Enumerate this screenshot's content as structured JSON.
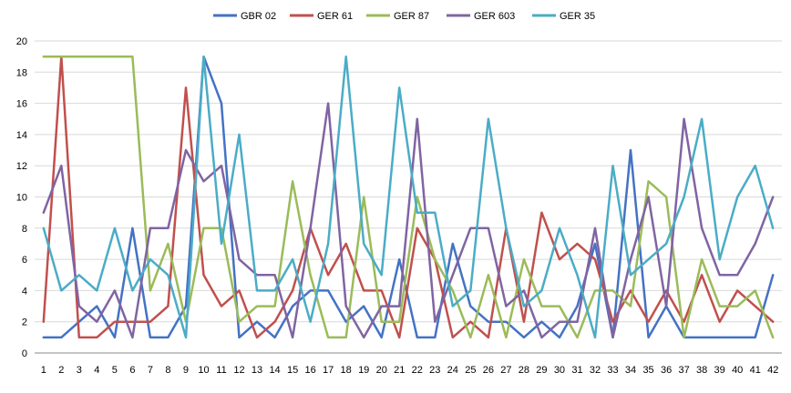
{
  "chart_data": {
    "type": "line",
    "title": "",
    "xlabel": "",
    "ylabel": "",
    "ylim": [
      0,
      20
    ],
    "y_ticks": [
      0,
      2,
      4,
      6,
      8,
      10,
      12,
      14,
      16,
      18,
      20
    ],
    "grid": "horizontal",
    "legend_position": "top",
    "x": [
      1,
      2,
      3,
      4,
      5,
      6,
      7,
      8,
      9,
      10,
      11,
      12,
      13,
      14,
      15,
      16,
      17,
      18,
      19,
      20,
      21,
      22,
      23,
      24,
      25,
      26,
      27,
      28,
      29,
      30,
      31,
      32,
      33,
      34,
      35,
      36,
      37,
      38,
      39,
      40,
      41,
      42
    ],
    "series": [
      {
        "name": "GBR 02",
        "color": "#4472C4",
        "values": [
          1,
          1,
          2,
          3,
          1,
          8,
          1,
          1,
          3,
          19,
          16,
          1,
          2,
          1,
          3,
          4,
          4,
          2,
          3,
          1,
          6,
          1,
          1,
          7,
          3,
          2,
          2,
          1,
          2,
          1,
          3,
          7,
          1,
          13,
          1,
          3,
          1,
          1,
          1,
          1,
          1,
          5
        ]
      },
      {
        "name": "GER 61",
        "color": "#C0504D",
        "values": [
          2,
          19,
          1,
          1,
          2,
          2,
          2,
          3,
          17,
          5,
          3,
          4,
          1,
          2,
          4,
          8,
          5,
          7,
          4,
          4,
          1,
          8,
          6,
          1,
          2,
          1,
          8,
          2,
          9,
          6,
          7,
          6,
          2,
          4,
          2,
          4,
          2,
          5,
          2,
          4,
          3,
          2
        ]
      },
      {
        "name": "GER 87",
        "color": "#9BBB59",
        "values": [
          19,
          19,
          19,
          19,
          19,
          19,
          4,
          7,
          2,
          8,
          8,
          2,
          3,
          3,
          11,
          5,
          1,
          1,
          10,
          2,
          2,
          10,
          6,
          4,
          1,
          5,
          1,
          6,
          3,
          3,
          1,
          4,
          4,
          3,
          11,
          10,
          1,
          6,
          3,
          3,
          4,
          1
        ]
      },
      {
        "name": "GER 603",
        "color": "#8064A2",
        "values": [
          9,
          12,
          3,
          2,
          4,
          1,
          8,
          8,
          13,
          11,
          12,
          6,
          5,
          5,
          1,
          8,
          16,
          3,
          1,
          3,
          3,
          15,
          2,
          5,
          8,
          8,
          3,
          4,
          1,
          2,
          2,
          8,
          1,
          6,
          10,
          3,
          15,
          8,
          5,
          5,
          7,
          10
        ]
      },
      {
        "name": "GER 35",
        "color": "#4BACC6",
        "values": [
          8,
          4,
          5,
          4,
          8,
          4,
          6,
          5,
          1,
          19,
          7,
          14,
          4,
          4,
          6,
          2,
          7,
          19,
          7,
          5,
          17,
          9,
          9,
          3,
          4,
          15,
          8,
          3,
          4,
          8,
          5,
          1,
          12,
          5,
          6,
          7,
          10,
          15,
          6,
          10,
          12,
          8
        ]
      }
    ]
  }
}
